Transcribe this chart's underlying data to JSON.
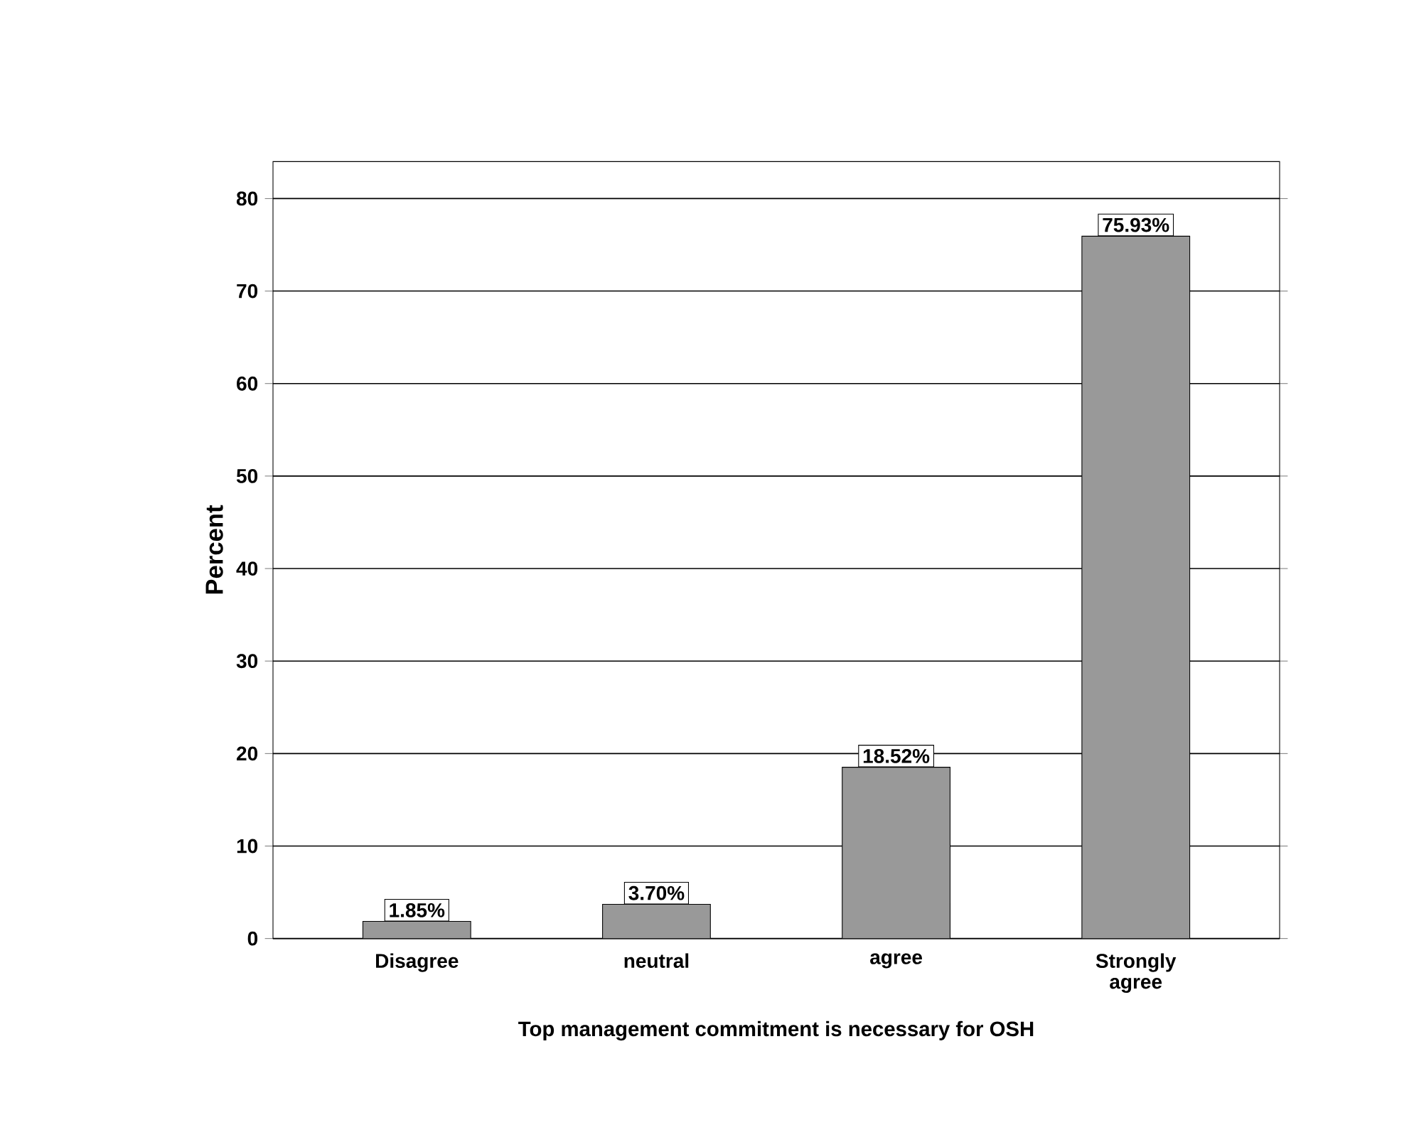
{
  "chart_data": {
    "type": "bar",
    "xlabel": "Top management commitment is necessary for OSH",
    "ylabel": "Percent",
    "categories": [
      "Disagree",
      "neutral",
      "agree",
      "Strongly agree"
    ],
    "values": [
      1.85,
      3.7,
      18.52,
      75.93
    ],
    "value_labels": [
      "1.85%",
      "3.70%",
      "18.52%",
      "75.93%"
    ],
    "color": "#999999",
    "ylim": [
      0,
      84
    ],
    "yticks": [
      0,
      10,
      20,
      30,
      40,
      50,
      60,
      70,
      80
    ],
    "grid": "y"
  }
}
